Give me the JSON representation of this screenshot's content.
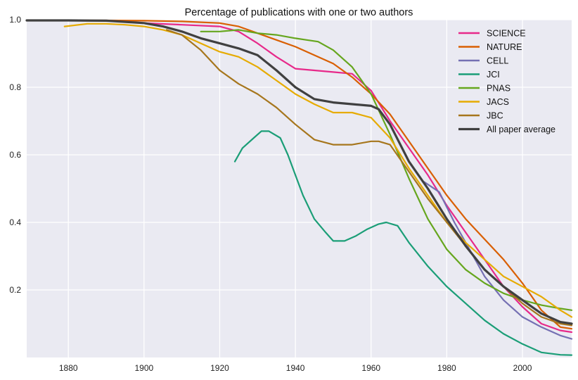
{
  "chart_data": {
    "type": "line",
    "title": "Percentage of publications with one or two authors",
    "xlabel": "",
    "ylabel": "",
    "xlim": [
      1869,
      2013
    ],
    "ylim": [
      0.0,
      1.0
    ],
    "xticks": [
      1880,
      1900,
      1920,
      1940,
      1960,
      1980,
      2000
    ],
    "yticks": [
      0.2,
      0.4,
      0.6,
      0.8,
      1.0
    ],
    "xtick_labels": [
      "1880",
      "1900",
      "1920",
      "1940",
      "1960",
      "1980",
      "2000"
    ],
    "ytick_labels": [
      "0.2",
      "0.4",
      "0.6",
      "0.8",
      "1.0"
    ],
    "grid": true,
    "legend_position": "top-right",
    "background": "#EAEAF2",
    "series": [
      {
        "name": "SCIENCE",
        "color": "#E7298A",
        "x": [
          1900,
          1910,
          1920,
          1925,
          1930,
          1935,
          1940,
          1945,
          1950,
          1955,
          1960,
          1965,
          1970,
          1975,
          1980,
          1985,
          1990,
          1995,
          2000,
          2005,
          2010,
          2013
        ],
        "values": [
          0.99,
          0.985,
          0.98,
          0.965,
          0.93,
          0.89,
          0.855,
          0.85,
          0.845,
          0.84,
          0.79,
          0.7,
          0.62,
          0.54,
          0.45,
          0.37,
          0.29,
          0.21,
          0.15,
          0.1,
          0.08,
          0.075
        ]
      },
      {
        "name": "NATURE",
        "color": "#D95F02",
        "x": [
          1869,
          1880,
          1890,
          1900,
          1910,
          1920,
          1925,
          1930,
          1935,
          1940,
          1945,
          1950,
          1955,
          1960,
          1965,
          1970,
          1975,
          1980,
          1985,
          1990,
          1995,
          2000,
          2005,
          2010,
          2013
        ],
        "values": [
          0.998,
          0.998,
          0.998,
          0.997,
          0.995,
          0.99,
          0.98,
          0.96,
          0.94,
          0.92,
          0.895,
          0.87,
          0.83,
          0.78,
          0.72,
          0.64,
          0.56,
          0.48,
          0.41,
          0.35,
          0.29,
          0.22,
          0.14,
          0.09,
          0.085
        ]
      },
      {
        "name": "CELL",
        "color": "#7570B3",
        "x": [
          1974,
          1978,
          1982,
          1986,
          1990,
          1995,
          2000,
          2005,
          2010,
          2013
        ],
        "values": [
          0.52,
          0.49,
          0.4,
          0.32,
          0.24,
          0.17,
          0.12,
          0.09,
          0.065,
          0.055
        ]
      },
      {
        "name": "JCI",
        "color": "#1B9E77",
        "x": [
          1924,
          1926,
          1929,
          1931,
          1933,
          1936,
          1938,
          1940,
          1942,
          1945,
          1948,
          1950,
          1953,
          1956,
          1959,
          1962,
          1964,
          1967,
          1970,
          1975,
          1980,
          1985,
          1990,
          1995,
          2000,
          2005,
          2010,
          2013
        ],
        "values": [
          0.58,
          0.62,
          0.65,
          0.67,
          0.67,
          0.65,
          0.6,
          0.54,
          0.48,
          0.41,
          0.37,
          0.345,
          0.345,
          0.36,
          0.38,
          0.395,
          0.4,
          0.39,
          0.34,
          0.27,
          0.21,
          0.16,
          0.11,
          0.07,
          0.04,
          0.015,
          0.008,
          0.007
        ]
      },
      {
        "name": "PNAS",
        "color": "#66A61E",
        "x": [
          1915,
          1920,
          1925,
          1930,
          1935,
          1940,
          1943,
          1946,
          1950,
          1955,
          1960,
          1965,
          1970,
          1975,
          1980,
          1985,
          1990,
          1995,
          2000,
          2005,
          2010,
          2013
        ],
        "values": [
          0.965,
          0.965,
          0.97,
          0.96,
          0.955,
          0.945,
          0.94,
          0.935,
          0.91,
          0.86,
          0.78,
          0.66,
          0.53,
          0.41,
          0.32,
          0.26,
          0.22,
          0.19,
          0.17,
          0.155,
          0.145,
          0.14
        ]
      },
      {
        "name": "JACS",
        "color": "#E6AB02",
        "x": [
          1879,
          1885,
          1890,
          1895,
          1900,
          1905,
          1910,
          1915,
          1920,
          1925,
          1930,
          1935,
          1940,
          1945,
          1950,
          1955,
          1960,
          1965,
          1970,
          1975,
          1980,
          1985,
          1990,
          1995,
          2000,
          2005,
          2010,
          2013
        ],
        "values": [
          0.98,
          0.988,
          0.988,
          0.985,
          0.98,
          0.97,
          0.955,
          0.93,
          0.905,
          0.89,
          0.86,
          0.82,
          0.78,
          0.75,
          0.725,
          0.725,
          0.71,
          0.65,
          0.56,
          0.48,
          0.4,
          0.34,
          0.29,
          0.24,
          0.21,
          0.18,
          0.14,
          0.12
        ]
      },
      {
        "name": "JBC",
        "color": "#A6761D",
        "x": [
          1906,
          1910,
          1915,
          1920,
          1925,
          1930,
          1935,
          1940,
          1945,
          1950,
          1955,
          1960,
          1962,
          1965,
          1970,
          1975,
          1980,
          1985,
          1990,
          1995,
          2000,
          2005,
          2010,
          2013
        ],
        "values": [
          0.97,
          0.955,
          0.91,
          0.85,
          0.81,
          0.78,
          0.74,
          0.69,
          0.645,
          0.63,
          0.63,
          0.64,
          0.64,
          0.63,
          0.55,
          0.47,
          0.4,
          0.33,
          0.26,
          0.21,
          0.16,
          0.12,
          0.1,
          0.095
        ]
      },
      {
        "name": "All paper average",
        "color": "#404040",
        "x": [
          1869,
          1880,
          1890,
          1900,
          1905,
          1910,
          1915,
          1920,
          1925,
          1930,
          1935,
          1940,
          1945,
          1950,
          1955,
          1960,
          1962,
          1965,
          1970,
          1975,
          1980,
          1985,
          1990,
          1995,
          2000,
          2005,
          2010,
          2013
        ],
        "values": [
          0.998,
          0.998,
          0.997,
          0.99,
          0.98,
          0.965,
          0.945,
          0.93,
          0.915,
          0.895,
          0.85,
          0.8,
          0.765,
          0.755,
          0.75,
          0.745,
          0.735,
          0.69,
          0.58,
          0.5,
          0.41,
          0.33,
          0.26,
          0.21,
          0.17,
          0.13,
          0.105,
          0.1
        ]
      }
    ]
  }
}
